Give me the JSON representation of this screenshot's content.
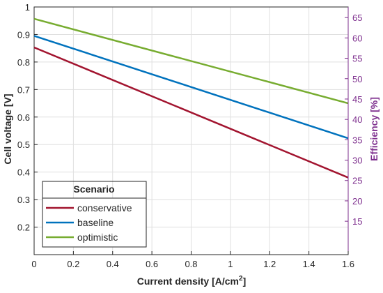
{
  "chart_data": {
    "type": "line",
    "xlabel": "Current density [A/cm",
    "xlabel_sup": "2",
    "xlabel_end": "]",
    "ylabel": "Cell voltage [V]",
    "y2label": "Efficiency [%]",
    "xlim": [
      0,
      1.6
    ],
    "ylim": [
      0.1,
      1.0
    ],
    "y2lim": [
      6.8,
      67.6
    ],
    "xticks": [
      0,
      0.2,
      0.4,
      0.6,
      0.8,
      1,
      1.2,
      1.4,
      1.6
    ],
    "xtick_labels": [
      "0",
      "0.2",
      "0.4",
      "0.6",
      "0.8",
      "1",
      "1.2",
      "1.4",
      "1.6"
    ],
    "yticks": [
      0.2,
      0.3,
      0.4,
      0.5,
      0.6,
      0.7,
      0.8,
      0.9,
      1
    ],
    "ytick_labels": [
      "0.2",
      "0.3",
      "0.4",
      "0.5",
      "0.6",
      "0.7",
      "0.8",
      "0.9",
      "1"
    ],
    "y2ticks": [
      15,
      20,
      25,
      30,
      35,
      40,
      45,
      50,
      55,
      60,
      65
    ],
    "y2tick_labels": [
      "15",
      "20",
      "25",
      "30",
      "35",
      "40",
      "45",
      "50",
      "55",
      "60",
      "65"
    ],
    "grid": true,
    "legend": {
      "title": "Scenario",
      "placement": "bottom-left"
    },
    "series": [
      {
        "name": "conservative",
        "color": "#A2142F",
        "x": [
          0,
          1.6
        ],
        "y": [
          0.853,
          0.38
        ]
      },
      {
        "name": "baseline",
        "color": "#0072BD",
        "x": [
          0,
          1.6
        ],
        "y": [
          0.895,
          0.523
        ]
      },
      {
        "name": "optimistic",
        "color": "#77AC30",
        "x": [
          0,
          1.6
        ],
        "y": [
          0.957,
          0.65
        ]
      }
    ],
    "colors": {
      "axis": "#262626",
      "right_axis": "#7E2F8E",
      "grid": "#dfdfdf"
    }
  }
}
